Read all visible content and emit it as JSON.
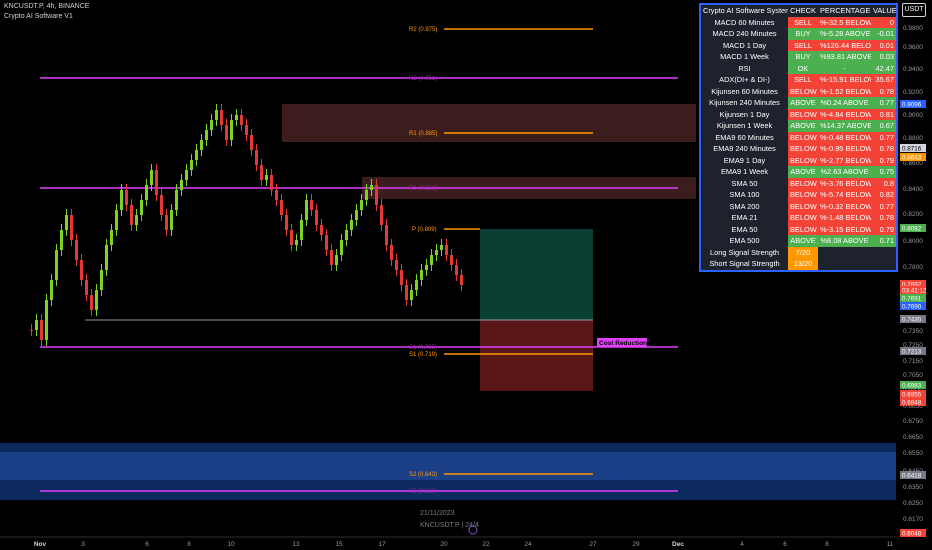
{
  "header": {
    "symbol_line": "KNCUSDT.P, 4h, BINANCE",
    "indicator_name": "Crypto AI Software V1",
    "currency_button": "USDT"
  },
  "price_axis": {
    "ticks": [
      "0.9800",
      "0.9600",
      "0.9400",
      "0.9200",
      "0.9000",
      "0.8800",
      "0.8600",
      "0.8400",
      "0.8200",
      "0.8000",
      "0.7800",
      "0.7600",
      "0.7500",
      "0.7350",
      "0.7250",
      "0.7150",
      "0.7050",
      "0.6950",
      "0.6850",
      "0.6750",
      "0.6650",
      "0.6550",
      "0.6450",
      "0.6350",
      "0.6250",
      "0.6170",
      "0.6070"
    ],
    "badges": [
      {
        "text": "0.9096",
        "color": "#2962ff"
      },
      {
        "text": "0.8716",
        "color": "#d1d4dc",
        "textcolor": "#000"
      },
      {
        "text": "0.8643",
        "color": "#ff9800"
      },
      {
        "text": "0.8082",
        "color": "#4caf50"
      },
      {
        "text": "0.7692",
        "color": "#f44336"
      },
      {
        "text": "03:41:12",
        "color": "#f44336"
      },
      {
        "text": "0.7691",
        "color": "#4caf50"
      },
      {
        "text": "0.7690",
        "color": "#2962ff"
      },
      {
        "text": "0.7430",
        "color": "#787b86"
      },
      {
        "text": "0.7213",
        "color": "#787b86"
      },
      {
        "text": "0.6983",
        "color": "#4caf50"
      },
      {
        "text": "0.6955",
        "color": "#f44336"
      },
      {
        "text": "0.6948",
        "color": "#f44336"
      },
      {
        "text": "0.6418",
        "color": "#787b86"
      },
      {
        "text": "0.6048",
        "color": "#f44336"
      }
    ]
  },
  "time_axis": {
    "ticks": [
      "Nov",
      "3",
      "6",
      "8",
      "10",
      "13",
      "15",
      "17",
      "20",
      "22",
      "24",
      "27",
      "29",
      "Dec",
      "4",
      "6",
      "8",
      "11"
    ],
    "crosshair_date": "21/11/2023",
    "watermark": "KNCUSDT.P | 24/4"
  },
  "levels": {
    "r2": "R2 (0.975)",
    "r1": "R1 (0.885)",
    "p": "P (0.809)",
    "s1": "S1 (0.719)",
    "s2": "S2 (0.643)",
    "cost_reduction": "Cost Reduction",
    "magenta_top": "R2 (0.951)",
    "magenta_mid": "R1 (0.853)",
    "magenta_low": "S1 (0.725)",
    "magenta_bottom": "S2 (0.620)"
  },
  "colors": {
    "bull": "#7ed321",
    "bear": "#e53935",
    "magenta": "#e040fb",
    "orange": "#ff9800",
    "table_border": "#2962ff"
  },
  "table": {
    "headers": [
      "Crypto AI Software Systems",
      "CHECK",
      "PERCENTAGE",
      "VALUE"
    ],
    "rows": [
      {
        "name": "MACD 60 Minutes",
        "check": "SELL",
        "pct": "%-32.5 BELOW",
        "value": "0",
        "c": "red"
      },
      {
        "name": "MACD 240 Minutes",
        "check": "BUY",
        "pct": "%-5.28 ABOVE",
        "value": "-0.01",
        "c": "green"
      },
      {
        "name": "MACD 1 Day",
        "check": "SELL",
        "pct": "%126.44 BELOW",
        "value": "0.01",
        "c": "red"
      },
      {
        "name": "MACD 1 Week",
        "check": "BUY",
        "pct": "%93.81 ABOVE",
        "value": "0.03",
        "c": "green"
      },
      {
        "name": "RSI",
        "check": "OK",
        "pct": "-",
        "value": "42.47",
        "c": "green"
      },
      {
        "name": "ADX(DI+ & DI-)",
        "check": "SELL",
        "pct": "%-15.91 BELOW",
        "value": "35.67",
        "c": "red"
      },
      {
        "name": "Kijunsen 60 Minutes",
        "check": "BELOW",
        "pct": "%-1.52 BELOW",
        "value": "0.78",
        "c": "red"
      },
      {
        "name": "Kijunsen 240 Minutes",
        "check": "ABOVE",
        "pct": "%0.24 ABOVE",
        "value": "0.77",
        "c": "green"
      },
      {
        "name": "Kijunsen 1 Day",
        "check": "BELOW",
        "pct": "%-4.84 BELOW",
        "value": "0.81",
        "c": "red"
      },
      {
        "name": "Kijunsen 1 Week",
        "check": "ABOVE",
        "pct": "%14.37 ABOVE",
        "value": "0.67",
        "c": "green"
      },
      {
        "name": "EMA9 60 Minutes",
        "check": "BELOW",
        "pct": "%-0.48 BELOW",
        "value": "0.77",
        "c": "red"
      },
      {
        "name": "EMA9 240 Minutes",
        "check": "BELOW",
        "pct": "%-0.95 BELOW",
        "value": "0.78",
        "c": "red"
      },
      {
        "name": "EMA9 1 Day",
        "check": "BELOW",
        "pct": "%-2.77 BELOW",
        "value": "0.79",
        "c": "red"
      },
      {
        "name": "EMA9 1 Week",
        "check": "ABOVE",
        "pct": "%2.63 ABOVE",
        "value": "0.75",
        "c": "green"
      },
      {
        "name": "SMA 50",
        "check": "BELOW",
        "pct": "%-3.76 BELOW",
        "value": "0.8",
        "c": "red"
      },
      {
        "name": "SMA 100",
        "check": "BELOW",
        "pct": "%-5.74 BELOW",
        "value": "0.82",
        "c": "red"
      },
      {
        "name": "SMA 200",
        "check": "BELOW",
        "pct": "%-0.32 BELOW",
        "value": "0.77",
        "c": "red"
      },
      {
        "name": "EMA 21",
        "check": "BELOW",
        "pct": "%-1.48 BELOW",
        "value": "0.78",
        "c": "red"
      },
      {
        "name": "EMA 50",
        "check": "BELOW",
        "pct": "%-3.15 BELOW",
        "value": "0.79",
        "c": "red"
      },
      {
        "name": "EMA 500",
        "check": "ABOVE",
        "pct": "%8.08 ABOVE",
        "value": "0.71",
        "c": "green"
      }
    ],
    "strength": [
      {
        "name": "Long Signal Strength",
        "value": "7/20"
      },
      {
        "name": "Short Signal Strength",
        "value": "13/20"
      }
    ]
  }
}
